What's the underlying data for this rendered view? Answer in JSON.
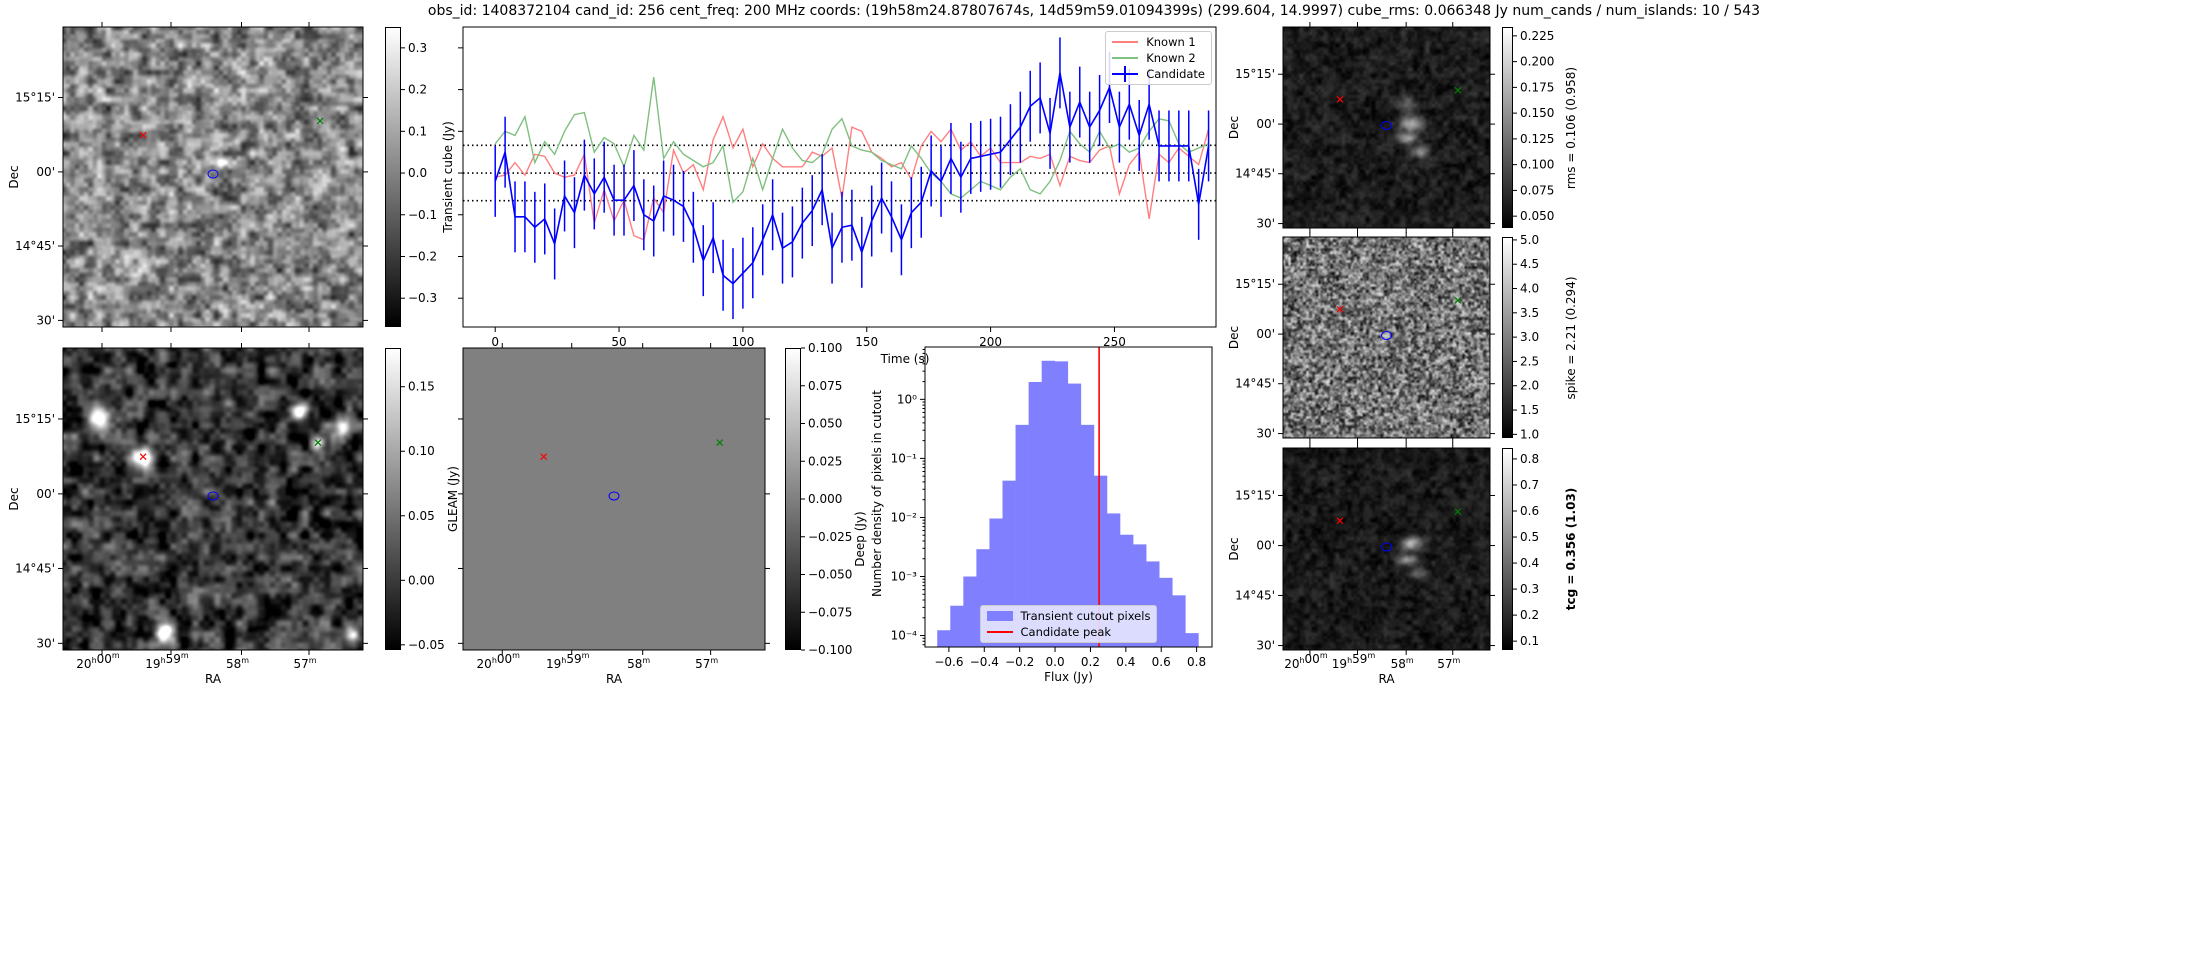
{
  "title": "obs_id: 1408372104 cand_id: 256 cent_freq: 200 MHz coords: (19h58m24.87807674s, 14d59m59.01094399s) (299.604, 14.9997) cube_rms: 0.066348 Jy num_cands / num_islands: 10 / 543",
  "axes": {
    "ra_label": "RA",
    "dec_label": "Dec",
    "ra_ticks": [
      "20h00m",
      "19h59m",
      "58m",
      "57m"
    ],
    "dec_ticks": [
      "15°15'",
      "00'",
      "14°45'",
      "30'"
    ]
  },
  "panels": {
    "transient": {
      "colorbar_label": "Transient cube (Jy)",
      "range": [
        -0.369,
        0.35
      ],
      "ticks": [
        0.3,
        0.2,
        0.1,
        0.0,
        -0.1,
        -0.2,
        -0.3
      ],
      "tick_labels": [
        "0.3",
        "0.2",
        "0.1",
        "0.0",
        "−0.1",
        "−0.2",
        "−0.3"
      ]
    },
    "deep": {
      "colorbar_label": "Deep (Jy)",
      "range": [
        -0.054,
        0.18
      ],
      "ticks": [
        0.15,
        0.1,
        0.05,
        0.0,
        -0.05
      ],
      "tick_labels": [
        "0.15",
        "0.10",
        "0.05",
        "0.00",
        "−0.05"
      ]
    },
    "gleam": {
      "colorbar_label": "GLEAM (Jy)",
      "range": [
        -0.1,
        0.1
      ],
      "ticks": [
        0.1,
        0.075,
        0.05,
        0.025,
        0.0,
        -0.025,
        -0.05,
        -0.075,
        -0.1
      ],
      "tick_labels": [
        "0.100",
        "0.075",
        "0.050",
        "0.025",
        "0.000",
        "−0.025",
        "−0.050",
        "−0.075",
        "−0.100"
      ]
    },
    "rms": {
      "colorbar_label": "rms = 0.106 (0.958)",
      "range": [
        0.0385,
        0.2336
      ],
      "ticks": [
        0.225,
        0.2,
        0.175,
        0.15,
        0.125,
        0.1,
        0.075,
        0.05
      ],
      "tick_labels": [
        "0.225",
        "0.200",
        "0.175",
        "0.150",
        "0.125",
        "0.100",
        "0.075",
        "0.050"
      ]
    },
    "spike": {
      "colorbar_label": "spike = 2.21 (0.294)",
      "range": [
        0.925,
        5.06
      ],
      "ticks": [
        5.0,
        4.5,
        4.0,
        3.5,
        3.0,
        2.5,
        2.0,
        1.5,
        1.0
      ],
      "tick_labels": [
        "5.0",
        "4.5",
        "4.0",
        "3.5",
        "3.0",
        "2.5",
        "2.0",
        "1.5",
        "1.0"
      ]
    },
    "tcg": {
      "colorbar_label": "tcg = 0.356 (1.03)",
      "range": [
        0.066,
        0.842
      ],
      "ticks": [
        0.8,
        0.7,
        0.6,
        0.5,
        0.4,
        0.3,
        0.2,
        0.1
      ],
      "tick_labels": [
        "0.8",
        "0.7",
        "0.6",
        "0.5",
        "0.4",
        "0.3",
        "0.2",
        "0.1"
      ]
    }
  },
  "colors": {
    "known1": "#ff7f7f",
    "known2": "#7fbf7f",
    "candidate": "#0000ff",
    "hist": "#8080ff",
    "peak": "#ff0000",
    "known1_marker": "#ff0000",
    "known2_marker": "#008000",
    "contour": "#0000ff"
  },
  "chart_data": [
    {
      "type": "line",
      "title": "",
      "xlabel": "Time (s)",
      "ylabel": "",
      "xlim": [
        -13,
        291
      ],
      "ylim": [
        -0.369,
        0.35
      ],
      "xticks": [
        0,
        50,
        100,
        150,
        200,
        250
      ],
      "xtick_labels": [
        "0",
        "50",
        "100",
        "150",
        "200",
        "250"
      ],
      "yticks": [
        -0.3,
        -0.2,
        -0.1,
        0.0,
        0.1,
        0.2,
        0.3
      ],
      "hlines": [
        0.066348,
        0.0,
        -0.066348
      ],
      "legend_position": "top-right",
      "x_start": 0,
      "x_step": 4,
      "series": [
        {
          "name": "Known 1",
          "values": [
            -0.01,
            -0.005,
            0.025,
            -0.005,
            0.045,
            0.04,
            0.0,
            -0.01,
            -0.005,
            0.045,
            -0.12,
            -0.04,
            -0.115,
            -0.065,
            -0.15,
            -0.16,
            -0.06,
            -0.095,
            0.055,
            0.0,
            0.02,
            -0.04,
            0.08,
            0.135,
            0.06,
            0.105,
            0.015,
            0.07,
            0.035,
            0.015,
            0.015,
            0.015,
            0.05,
            0.04,
            0.06,
            -0.06,
            0.11,
            0.1,
            0.05,
            0.035,
            0.015,
            0.025,
            -0.015,
            0.065,
            0.1,
            0.075,
            0.105,
            0.055,
            0.075,
            0.04,
            0.06,
            0.025,
            0.025,
            0.025,
            0.04,
            0.035,
            0.045,
            -0.03,
            0.04,
            0.03,
            0.025,
            0.055,
            0.065,
            -0.05,
            0.02,
            0.05,
            -0.11,
            0.045,
            0.025,
            0.06,
            0.04,
            0.02,
            0.105
          ]
        },
        {
          "name": "Known 2",
          "values": [
            0.07,
            0.1,
            0.09,
            0.135,
            0.025,
            0.075,
            0.045,
            0.1,
            0.14,
            0.145,
            0.05,
            0.085,
            0.07,
            0.015,
            0.09,
            0.055,
            0.23,
            0.035,
            0.075,
            0.045,
            0.03,
            0.015,
            0.025,
            0.065,
            -0.07,
            -0.045,
            0.035,
            -0.04,
            0.035,
            0.105,
            0.06,
            0.03,
            0.025,
            0.045,
            0.105,
            0.13,
            0.065,
            0.055,
            0.05,
            0.03,
            0.02,
            0.01,
            0.065,
            0.035,
            0.0,
            -0.02,
            -0.05,
            -0.06,
            -0.04,
            -0.02,
            -0.03,
            -0.04,
            -0.01,
            0.01,
            -0.04,
            -0.05,
            -0.02,
            0.03,
            0.1,
            0.07,
            0.05,
            0.1,
            0.06,
            0.07,
            0.05,
            0.06,
            0.1,
            0.13,
            0.125,
            0.07,
            0.05,
            0.06,
            0.07
          ]
        },
        {
          "name": "Candidate",
          "values": [
            -0.02,
            0.05,
            -0.105,
            -0.105,
            -0.13,
            -0.11,
            -0.17,
            -0.055,
            -0.095,
            -0.005,
            -0.05,
            -0.01,
            -0.065,
            -0.065,
            -0.03,
            -0.1,
            -0.115,
            -0.055,
            -0.065,
            -0.08,
            -0.13,
            -0.21,
            -0.155,
            -0.245,
            -0.265,
            -0.24,
            -0.215,
            -0.16,
            -0.1,
            -0.18,
            -0.165,
            -0.12,
            -0.09,
            -0.04,
            -0.18,
            -0.13,
            -0.125,
            -0.19,
            -0.115,
            -0.06,
            -0.105,
            -0.16,
            -0.095,
            -0.07,
            0.005,
            -0.02,
            0.035,
            -0.01,
            0.035,
            0.04,
            0.045,
            0.05,
            0.08,
            0.11,
            0.16,
            0.18,
            0.095,
            0.24,
            0.11,
            0.17,
            0.11,
            0.15,
            0.205,
            0.11,
            0.165,
            0.09,
            0.165,
            0.065,
            0.065,
            0.065,
            0.065,
            -0.075,
            0.065
          ],
          "yerr": 0.085
        }
      ]
    },
    {
      "type": "bar",
      "title": "",
      "xlabel": "Flux (Jy)",
      "ylabel": "Number density of pixels in cutout",
      "yscale": "log",
      "xlim": [
        -0.735,
        0.887
      ],
      "ylim": [
        6.4e-05,
        7.7
      ],
      "xticks": [
        -0.6,
        -0.4,
        -0.2,
        0.0,
        0.2,
        0.4,
        0.6,
        0.8
      ],
      "xtick_labels": [
        "−0.6",
        "−0.4",
        "−0.2",
        "0.0",
        "0.2",
        "0.4",
        "0.6",
        "0.8"
      ],
      "yticks": [
        1,
        0.1,
        0.01,
        0.001,
        0.0001
      ],
      "ytick_labels": [
        "10⁰",
        "10⁻¹",
        "10⁻²",
        "10⁻³",
        "10⁻⁴"
      ],
      "bin_start": -0.666,
      "bin_width": 0.0738,
      "values": [
        0.000123,
        0.00032,
        0.001,
        0.0029,
        0.0096,
        0.042,
        0.37,
        1.97,
        4.5,
        4.4,
        1.85,
        0.37,
        0.051,
        0.0117,
        0.0051,
        0.0035,
        0.0018,
        0.00095,
        0.00048,
        0.00011
      ],
      "vline": 0.249,
      "legend": [
        "Transient cutout pixels",
        "Candidate peak"
      ],
      "legend_position": "lower-center"
    }
  ]
}
